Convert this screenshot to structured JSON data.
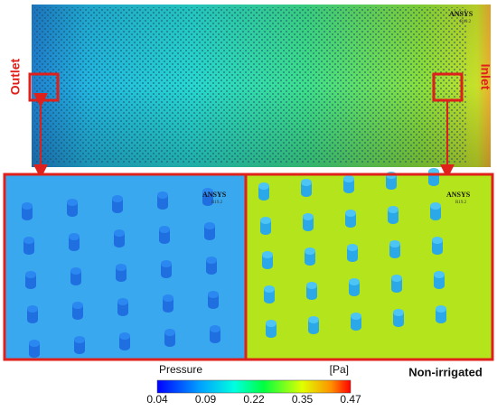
{
  "top_view": {
    "outlet_label": "Outlet",
    "inlet_label": "Inlet",
    "logo": "ANSYS",
    "version": "R19.2"
  },
  "zoom_left": {
    "logo": "ANSYS",
    "version": "R19.2"
  },
  "zoom_right": {
    "logo": "ANSYS",
    "version": "R19.2"
  },
  "colorbar": {
    "title": "Pressure",
    "unit": "[Pa]",
    "ticks": [
      0.04,
      0.09,
      0.22,
      0.35,
      0.47
    ]
  },
  "case_label": "Non-irrigated"
}
